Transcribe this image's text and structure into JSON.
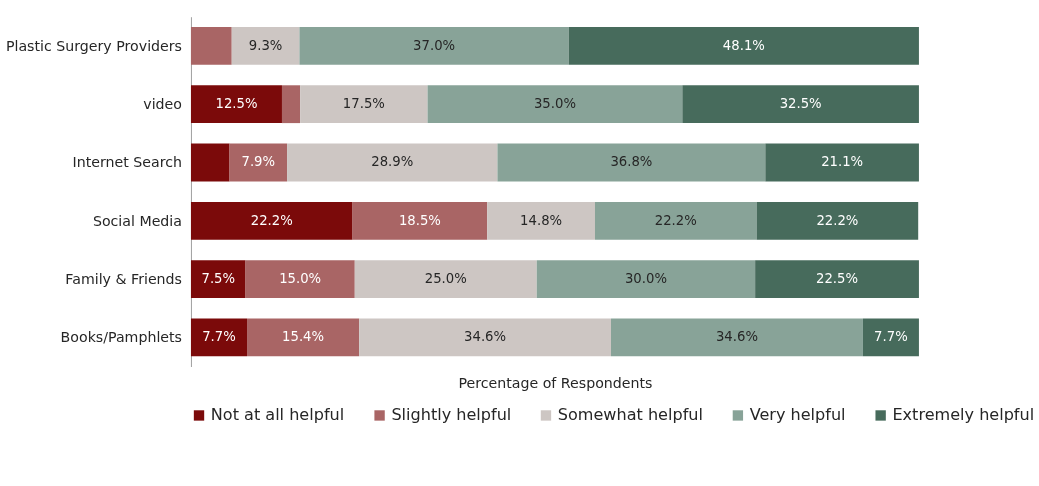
{
  "chart_data": {
    "type": "bar",
    "orientation": "horizontal",
    "stacked": true,
    "xlabel": "Percentage of Respondents",
    "xlim": [
      0,
      100
    ],
    "legend": "bottom",
    "categories": [
      "Plastic Surgery Providers",
      "video",
      "Internet Search",
      "Social Media",
      "Family & Friends",
      "Books/Pamphlets"
    ],
    "series": [
      {
        "name": "Not at all helpful",
        "color": "#7b0a0a",
        "values": [
          0,
          12.5,
          5.3,
          22.2,
          7.5,
          7.7
        ],
        "value_labels": [
          null,
          "12.5%",
          null,
          "22.2%",
          "7.5%",
          "7.7%"
        ]
      },
      {
        "name": "Slightly helpful",
        "color": "#a96565",
        "values": [
          5.6,
          2.5,
          7.9,
          18.5,
          15.0,
          15.4
        ],
        "value_labels": [
          null,
          null,
          "7.9%",
          "18.5%",
          "15.0%",
          "15.4%"
        ]
      },
      {
        "name": "Somewhat helpful",
        "color": "#cdc6c3",
        "values": [
          9.3,
          17.5,
          28.9,
          14.8,
          25.0,
          34.6
        ],
        "value_labels": [
          "9.3%",
          "17.5%",
          "28.9%",
          "14.8%",
          "25.0%",
          "34.6%"
        ]
      },
      {
        "name": "Very helpful",
        "color": "#88a398",
        "values": [
          37.0,
          35.0,
          36.8,
          22.2,
          30.0,
          34.6
        ],
        "value_labels": [
          "37.0%",
          "35.0%",
          "36.8%",
          "22.2%",
          "30.0%",
          "34.6%"
        ]
      },
      {
        "name": "Extremely helpful",
        "color": "#476b5c",
        "values": [
          48.1,
          32.5,
          21.1,
          22.2,
          22.5,
          7.7
        ],
        "value_labels": [
          "48.1%",
          "32.5%",
          "21.1%",
          "22.2%",
          "22.5%",
          "7.7%"
        ]
      }
    ]
  }
}
